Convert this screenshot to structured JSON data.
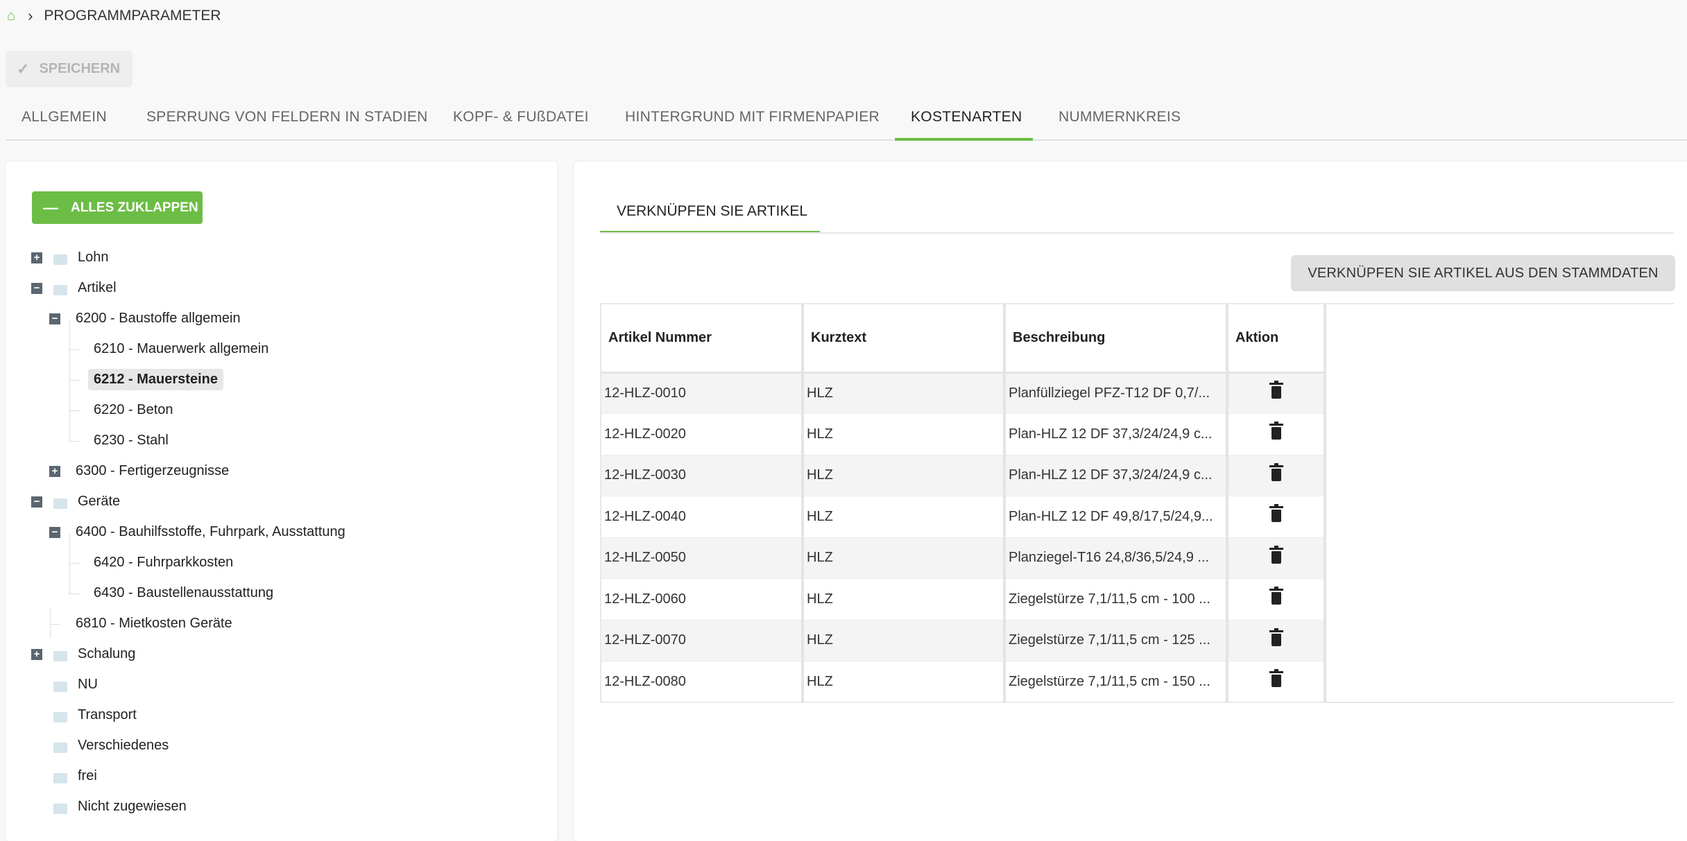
{
  "breadcrumb": {
    "home_icon": "home-icon",
    "current": "PROGRAMMPARAMETER"
  },
  "toolbar": {
    "save_label": "SPEICHERN"
  },
  "tabs": [
    {
      "label": "ALLGEMEIN"
    },
    {
      "label": "SPERRUNG VON FELDERN IN STADIEN"
    },
    {
      "label": "KOPF- & FUßDATEI"
    },
    {
      "label": "HINTERGRUND MIT FIRMENPAPIER"
    },
    {
      "label": "KOSTENARTEN",
      "active": true
    },
    {
      "label": "NUMMERNKREIS"
    }
  ],
  "colors": {
    "accent": "#6cbd45"
  },
  "tree": {
    "collapse_all_label": "ALLES ZUKLAPPEN",
    "items": [
      {
        "label": "Lohn",
        "level": 0,
        "toggle": "plus",
        "folder": true
      },
      {
        "label": "Artikel",
        "level": 0,
        "toggle": "minus",
        "folder": true
      },
      {
        "label": "6200 - Baustoffe allgemein",
        "level": 1,
        "toggle": "minus"
      },
      {
        "label": "6210 - Mauerwerk allgemein",
        "level": 2
      },
      {
        "label": "6212 - Mauersteine",
        "level": 2,
        "selected": true
      },
      {
        "label": "6220 - Beton",
        "level": 2
      },
      {
        "label": "6230 - Stahl",
        "level": 2
      },
      {
        "label": "6300 - Fertigerzeugnisse",
        "level": 1,
        "toggle": "plus"
      },
      {
        "label": "Geräte",
        "level": 0,
        "toggle": "minus",
        "folder": true
      },
      {
        "label": "6400 - Bauhilfsstoffe, Fuhrpark, Ausstattung",
        "level": 1,
        "toggle": "minus"
      },
      {
        "label": "6420 - Fuhrparkkosten",
        "level": 2
      },
      {
        "label": "6430 - Baustellenausstattung",
        "level": 2
      },
      {
        "label": "6810 - Mietkosten Geräte",
        "level": 1,
        "leaf": true
      },
      {
        "label": "Schalung",
        "level": 0,
        "toggle": "plus",
        "folder": true
      },
      {
        "label": "NU",
        "level": 0,
        "folder": true
      },
      {
        "label": "Transport",
        "level": 0,
        "folder": true
      },
      {
        "label": "Verschiedenes",
        "level": 0,
        "folder": true
      },
      {
        "label": "frei",
        "level": 0,
        "folder": true
      },
      {
        "label": "Nicht zugewiesen",
        "level": 0,
        "folder": true
      }
    ]
  },
  "main": {
    "subtab": "VERKNÜPFEN SIE ARTIKEL",
    "link_button": "VERKNÜPFEN SIE ARTIKEL AUS DEN STAMMDATEN",
    "table": {
      "headers": [
        "Artikel Nummer",
        "Kurztext",
        "Beschreibung",
        "Aktion"
      ],
      "rows": [
        [
          "12-HLZ-0010",
          "HLZ",
          "Planfüllziegel PFZ-T12 DF 0,7/..."
        ],
        [
          "12-HLZ-0020",
          "HLZ",
          "Plan-HLZ 12 DF 37,3/24/24,9 c..."
        ],
        [
          "12-HLZ-0030",
          "HLZ",
          "Plan-HLZ 12 DF 37,3/24/24,9 c..."
        ],
        [
          "12-HLZ-0040",
          "HLZ",
          "Plan-HLZ 12 DF 49,8/17,5/24,9..."
        ],
        [
          "12-HLZ-0050",
          "HLZ",
          "Planziegel-T16 24,8/36,5/24,9 ..."
        ],
        [
          "12-HLZ-0060",
          "HLZ",
          "Ziegelstürze 7,1/11,5 cm - 100 ..."
        ],
        [
          "12-HLZ-0070",
          "HLZ",
          "Ziegelstürze 7,1/11,5 cm - 125 ..."
        ],
        [
          "12-HLZ-0080",
          "HLZ",
          "Ziegelstürze 7,1/11,5 cm - 150 ..."
        ]
      ],
      "action_icon": "trash-icon"
    }
  }
}
